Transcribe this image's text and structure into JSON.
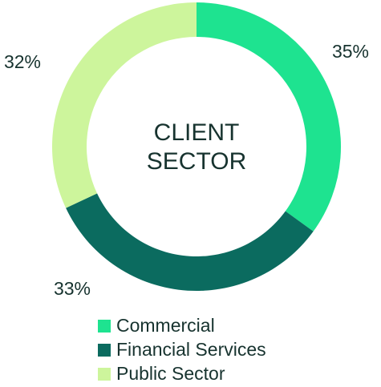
{
  "chart_data": {
    "type": "donut",
    "title": "CLIENT SECTOR",
    "categories": [
      "Commercial",
      "Financial Services",
      "Public Sector"
    ],
    "values": [
      35,
      33,
      32
    ],
    "value_labels": [
      "35%",
      "33%",
      "32%"
    ],
    "colors": [
      "#1ee390",
      "#0b6b5f",
      "#cdf59c"
    ],
    "legend": "bottom"
  }
}
